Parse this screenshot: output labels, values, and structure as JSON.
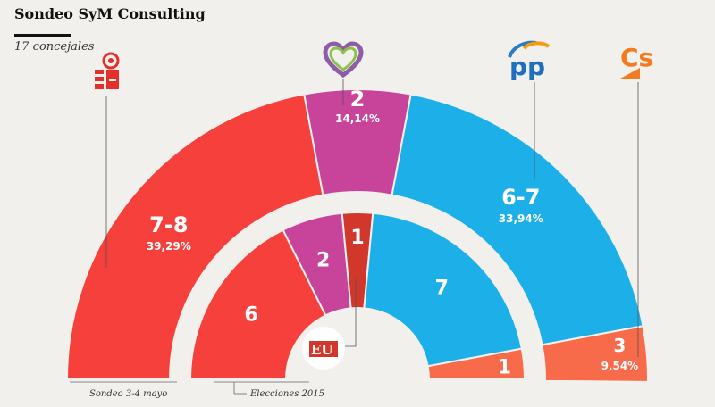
{
  "title": "Sondeo SyM Consulting",
  "subtitle": "17 concejales",
  "colors": {
    "psoe": "#f5403b",
    "podemos": "#c8449a",
    "pp": "#1db0e8",
    "cs": "#f76a4a",
    "iu": "#d2372b",
    "background": "#f2f0ec"
  },
  "party_logos": {
    "psoe": "psoe-rose-logo",
    "podemos": "heart-logo",
    "pp": "pp-logo",
    "cs": "cs-logo",
    "iu": "eu-logo"
  },
  "chart_data": {
    "type": "pie",
    "subtype": "parliament-semicircle",
    "total_seats": 17,
    "rings": [
      {
        "name": "Sondeo 3-4 mayo",
        "segments": [
          {
            "party": "psoe",
            "seats_label": "7-8",
            "seats": 7.5,
            "percent_label": "39,29%",
            "percent": 39.29
          },
          {
            "party": "podemos",
            "seats_label": "2",
            "seats": 2,
            "percent_label": "14,14%",
            "percent": 14.14
          },
          {
            "party": "pp",
            "seats_label": "6-7",
            "seats": 6.5,
            "percent_label": "33,94%",
            "percent": 33.94
          },
          {
            "party": "cs",
            "seats_label": "3",
            "seats": 3,
            "percent_label": "9,54%",
            "percent": 9.54
          }
        ]
      },
      {
        "name": "Elecciones 2015",
        "segments": [
          {
            "party": "psoe",
            "seats_label": "6",
            "seats": 6
          },
          {
            "party": "podemos",
            "seats_label": "2",
            "seats": 2
          },
          {
            "party": "iu",
            "seats_label": "1",
            "seats": 1
          },
          {
            "party": "pp",
            "seats_label": "7",
            "seats": 7
          },
          {
            "party": "cs",
            "seats_label": "1",
            "seats": 1
          }
        ]
      }
    ]
  }
}
